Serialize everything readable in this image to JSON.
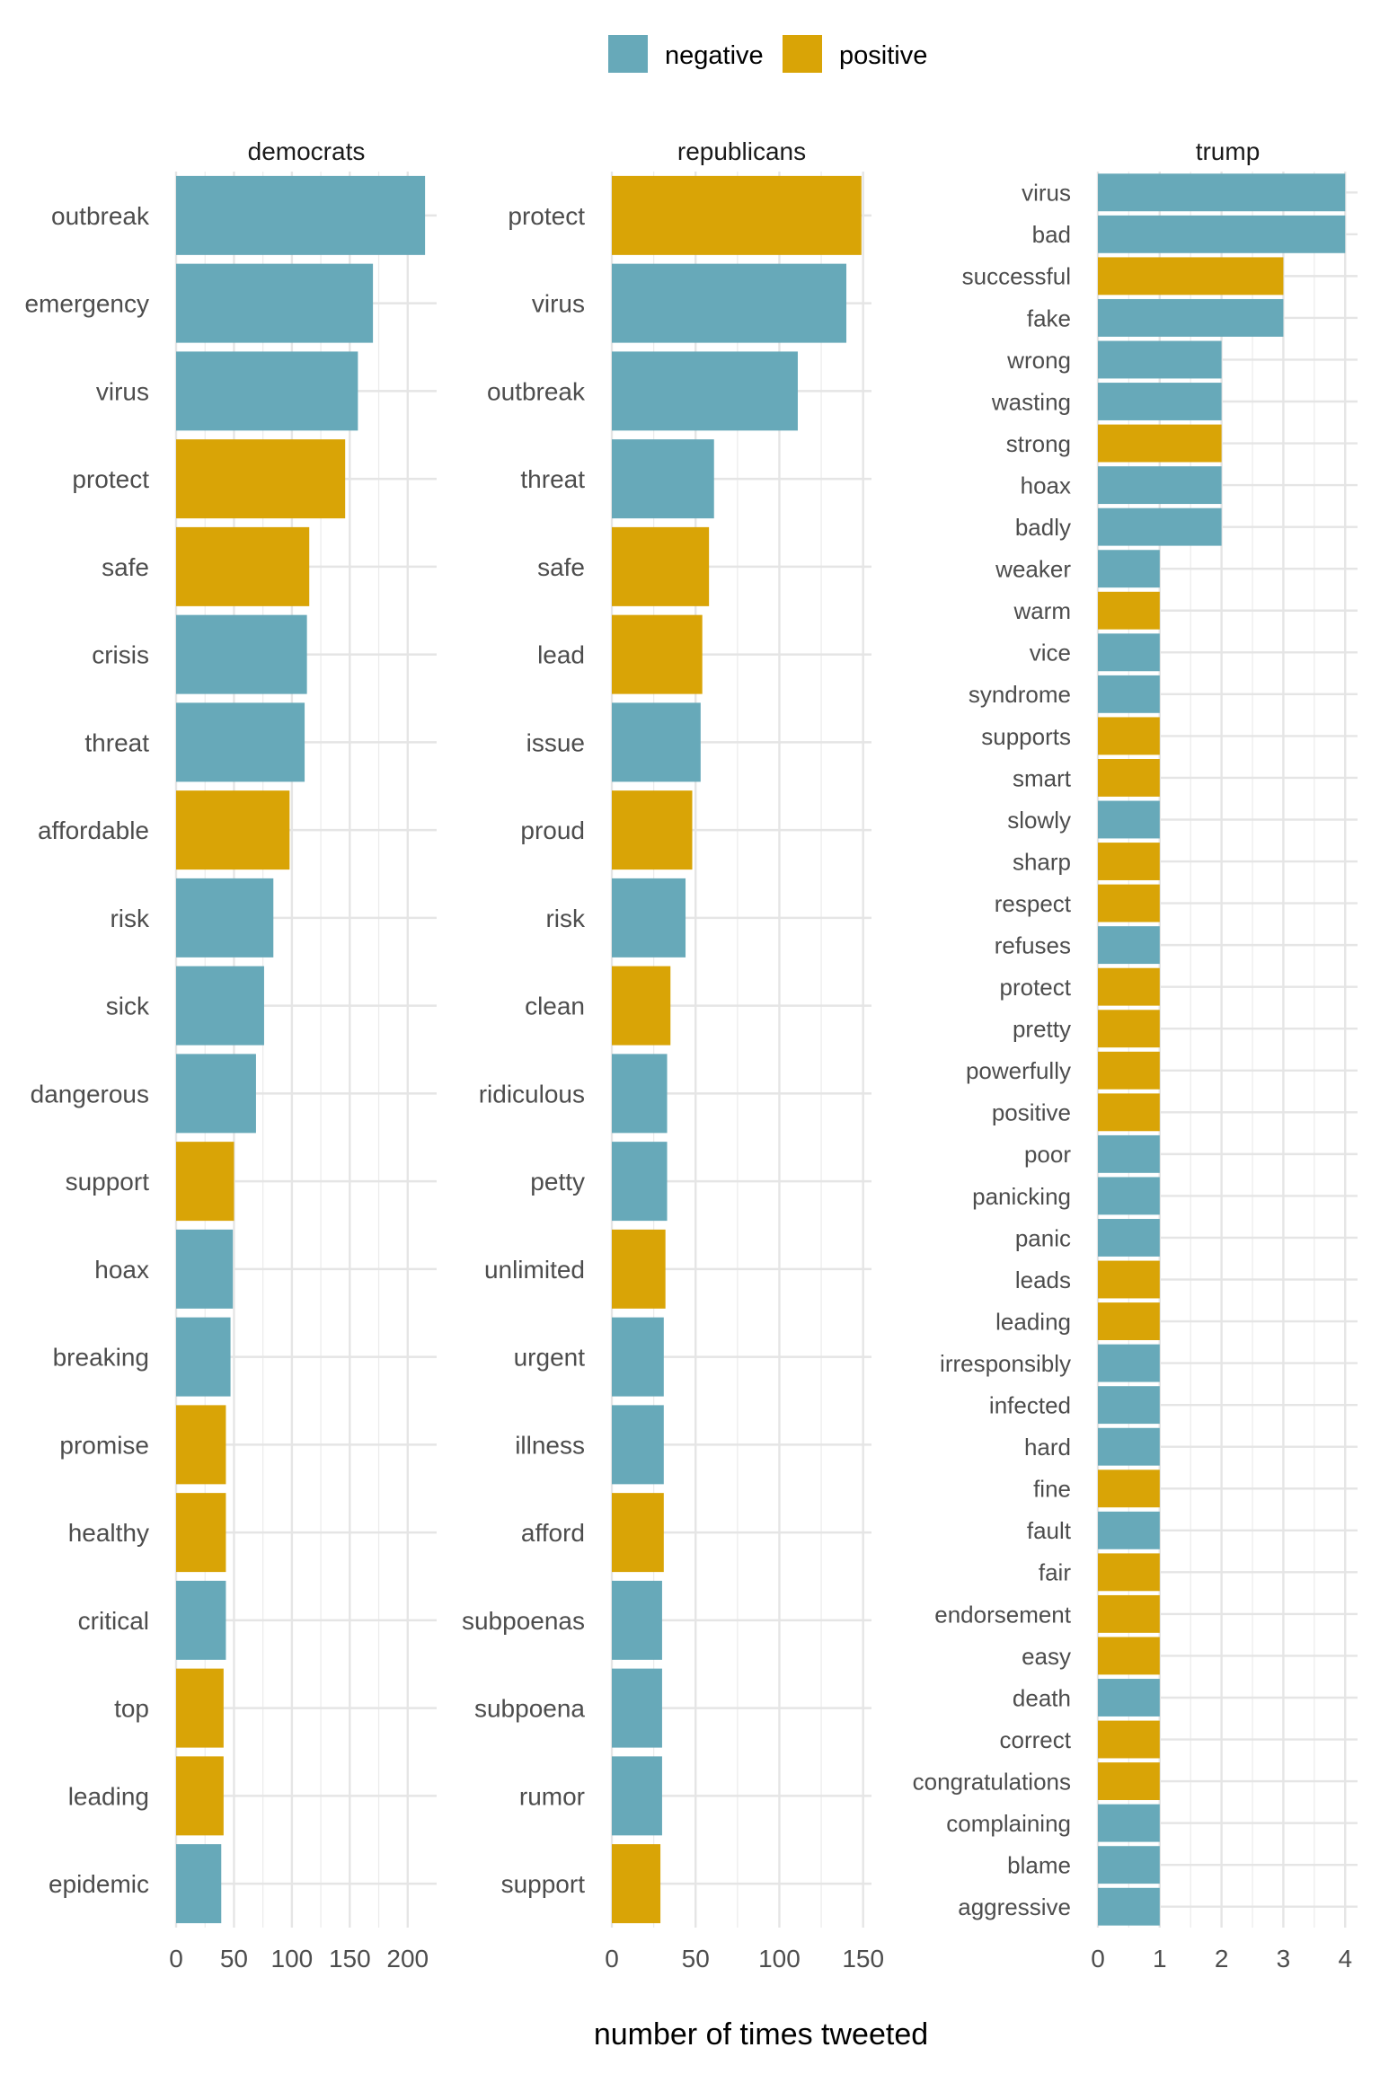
{
  "chart_data": {
    "type": "bar",
    "orientation": "horizontal",
    "xlabel": "number of times tweeted",
    "legend": {
      "position": "top",
      "entries": [
        {
          "key": "negative",
          "label": "negative",
          "color": "#67A9B9"
        },
        {
          "key": "positive",
          "label": "positive",
          "color": "#D9A406"
        }
      ]
    },
    "grid": true,
    "panels": [
      {
        "title": "democrats",
        "xlim": [
          0,
          225
        ],
        "ticks": [
          0,
          50,
          100,
          150,
          200
        ],
        "bars": [
          {
            "label": "outbreak",
            "value": 215,
            "sentiment": "negative"
          },
          {
            "label": "emergency",
            "value": 170,
            "sentiment": "negative"
          },
          {
            "label": "virus",
            "value": 157,
            "sentiment": "negative"
          },
          {
            "label": "protect",
            "value": 146,
            "sentiment": "positive"
          },
          {
            "label": "safe",
            "value": 115,
            "sentiment": "positive"
          },
          {
            "label": "crisis",
            "value": 113,
            "sentiment": "negative"
          },
          {
            "label": "threat",
            "value": 111,
            "sentiment": "negative"
          },
          {
            "label": "affordable",
            "value": 98,
            "sentiment": "positive"
          },
          {
            "label": "risk",
            "value": 84,
            "sentiment": "negative"
          },
          {
            "label": "sick",
            "value": 76,
            "sentiment": "negative"
          },
          {
            "label": "dangerous",
            "value": 69,
            "sentiment": "negative"
          },
          {
            "label": "support",
            "value": 50,
            "sentiment": "positive"
          },
          {
            "label": "hoax",
            "value": 49,
            "sentiment": "negative"
          },
          {
            "label": "breaking",
            "value": 47,
            "sentiment": "negative"
          },
          {
            "label": "promise",
            "value": 43,
            "sentiment": "positive"
          },
          {
            "label": "healthy",
            "value": 43,
            "sentiment": "positive"
          },
          {
            "label": "critical",
            "value": 43,
            "sentiment": "negative"
          },
          {
            "label": "top",
            "value": 41,
            "sentiment": "positive"
          },
          {
            "label": "leading",
            "value": 41,
            "sentiment": "positive"
          },
          {
            "label": "epidemic",
            "value": 39,
            "sentiment": "negative"
          }
        ]
      },
      {
        "title": "republicans",
        "xlim": [
          0,
          155
        ],
        "ticks": [
          0,
          50,
          100,
          150
        ],
        "bars": [
          {
            "label": "protect",
            "value": 149,
            "sentiment": "positive"
          },
          {
            "label": "virus",
            "value": 140,
            "sentiment": "negative"
          },
          {
            "label": "outbreak",
            "value": 111,
            "sentiment": "negative"
          },
          {
            "label": "threat",
            "value": 61,
            "sentiment": "negative"
          },
          {
            "label": "safe",
            "value": 58,
            "sentiment": "positive"
          },
          {
            "label": "lead",
            "value": 54,
            "sentiment": "positive"
          },
          {
            "label": "issue",
            "value": 53,
            "sentiment": "negative"
          },
          {
            "label": "proud",
            "value": 48,
            "sentiment": "positive"
          },
          {
            "label": "risk",
            "value": 44,
            "sentiment": "negative"
          },
          {
            "label": "clean",
            "value": 35,
            "sentiment": "positive"
          },
          {
            "label": "ridiculous",
            "value": 33,
            "sentiment": "negative"
          },
          {
            "label": "petty",
            "value": 33,
            "sentiment": "negative"
          },
          {
            "label": "unlimited",
            "value": 32,
            "sentiment": "positive"
          },
          {
            "label": "urgent",
            "value": 31,
            "sentiment": "negative"
          },
          {
            "label": "illness",
            "value": 31,
            "sentiment": "negative"
          },
          {
            "label": "afford",
            "value": 31,
            "sentiment": "positive"
          },
          {
            "label": "subpoenas",
            "value": 30,
            "sentiment": "negative"
          },
          {
            "label": "subpoena",
            "value": 30,
            "sentiment": "negative"
          },
          {
            "label": "rumor",
            "value": 30,
            "sentiment": "negative"
          },
          {
            "label": "support",
            "value": 29,
            "sentiment": "positive"
          }
        ]
      },
      {
        "title": "trump",
        "xlim": [
          0,
          4.2
        ],
        "ticks": [
          0,
          1,
          2,
          3,
          4
        ],
        "bars": [
          {
            "label": "virus",
            "value": 4,
            "sentiment": "negative"
          },
          {
            "label": "bad",
            "value": 4,
            "sentiment": "negative"
          },
          {
            "label": "successful",
            "value": 3,
            "sentiment": "positive"
          },
          {
            "label": "fake",
            "value": 3,
            "sentiment": "negative"
          },
          {
            "label": "wrong",
            "value": 2,
            "sentiment": "negative"
          },
          {
            "label": "wasting",
            "value": 2,
            "sentiment": "negative"
          },
          {
            "label": "strong",
            "value": 2,
            "sentiment": "positive"
          },
          {
            "label": "hoax",
            "value": 2,
            "sentiment": "negative"
          },
          {
            "label": "badly",
            "value": 2,
            "sentiment": "negative"
          },
          {
            "label": "weaker",
            "value": 1,
            "sentiment": "negative"
          },
          {
            "label": "warm",
            "value": 1,
            "sentiment": "positive"
          },
          {
            "label": "vice",
            "value": 1,
            "sentiment": "negative"
          },
          {
            "label": "syndrome",
            "value": 1,
            "sentiment": "negative"
          },
          {
            "label": "supports",
            "value": 1,
            "sentiment": "positive"
          },
          {
            "label": "smart",
            "value": 1,
            "sentiment": "positive"
          },
          {
            "label": "slowly",
            "value": 1,
            "sentiment": "negative"
          },
          {
            "label": "sharp",
            "value": 1,
            "sentiment": "positive"
          },
          {
            "label": "respect",
            "value": 1,
            "sentiment": "positive"
          },
          {
            "label": "refuses",
            "value": 1,
            "sentiment": "negative"
          },
          {
            "label": "protect",
            "value": 1,
            "sentiment": "positive"
          },
          {
            "label": "pretty",
            "value": 1,
            "sentiment": "positive"
          },
          {
            "label": "powerfully",
            "value": 1,
            "sentiment": "positive"
          },
          {
            "label": "positive",
            "value": 1,
            "sentiment": "positive"
          },
          {
            "label": "poor",
            "value": 1,
            "sentiment": "negative"
          },
          {
            "label": "panicking",
            "value": 1,
            "sentiment": "negative"
          },
          {
            "label": "panic",
            "value": 1,
            "sentiment": "negative"
          },
          {
            "label": "leads",
            "value": 1,
            "sentiment": "positive"
          },
          {
            "label": "leading",
            "value": 1,
            "sentiment": "positive"
          },
          {
            "label": "irresponsibly",
            "value": 1,
            "sentiment": "negative"
          },
          {
            "label": "infected",
            "value": 1,
            "sentiment": "negative"
          },
          {
            "label": "hard",
            "value": 1,
            "sentiment": "negative"
          },
          {
            "label": "fine",
            "value": 1,
            "sentiment": "positive"
          },
          {
            "label": "fault",
            "value": 1,
            "sentiment": "negative"
          },
          {
            "label": "fair",
            "value": 1,
            "sentiment": "positive"
          },
          {
            "label": "endorsement",
            "value": 1,
            "sentiment": "positive"
          },
          {
            "label": "easy",
            "value": 1,
            "sentiment": "positive"
          },
          {
            "label": "death",
            "value": 1,
            "sentiment": "negative"
          },
          {
            "label": "correct",
            "value": 1,
            "sentiment": "positive"
          },
          {
            "label": "congratulations",
            "value": 1,
            "sentiment": "positive"
          },
          {
            "label": "complaining",
            "value": 1,
            "sentiment": "negative"
          },
          {
            "label": "blame",
            "value": 1,
            "sentiment": "negative"
          },
          {
            "label": "aggressive",
            "value": 1,
            "sentiment": "negative"
          }
        ]
      }
    ]
  }
}
